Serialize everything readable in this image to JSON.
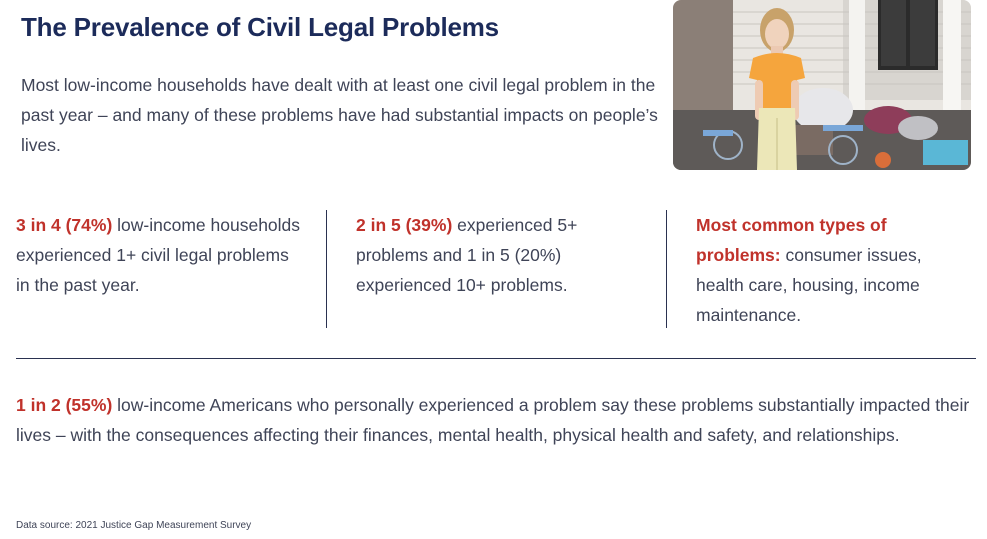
{
  "title": "The Prevalence of Civil Legal Problems",
  "intro": "Most low-income households have dealt with at least one civil legal problem in the past year – and many of these problems have had substantial impacts on people’s lives.",
  "stats": [
    {
      "highlight": "3 in 4 (74%)",
      "text": " low-income households experienced 1+ civil legal problems in the past year."
    },
    {
      "highlight": "2 in 5 (39%)",
      "text": " experienced 5+ problems and 1 in 5 (20%) experienced 10+ problems."
    },
    {
      "highlight": "Most common types of problems:",
      "text": " consumer issues, health care, housing, income maintenance."
    }
  ],
  "bottom": {
    "highlight": "1 in 2 (55%)",
    "text": " low-income Americans who personally experienced a problem say these problems substantially impacted their lives – with the consequences affecting their finances, mental health, physical health and safety, and relationships."
  },
  "source": "Data source: 2021 Justice Gap Measurement Survey",
  "colors": {
    "title": "#1c2b5a",
    "highlight": "#c0322b",
    "body_text": "#3f4457",
    "divider": "#2a3150"
  }
}
